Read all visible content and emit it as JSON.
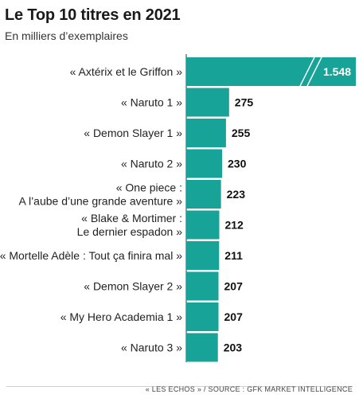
{
  "title": "Le Top 10 titres en 2021",
  "subtitle": "En milliers d’exemplaires",
  "source": "« LES ECHOS » / SOURCE : GFK MARKET INTELLIGENCE",
  "colors": {
    "bar": "#17a398",
    "axis": "#333333"
  },
  "chart_data": {
    "type": "bar",
    "orientation": "horizontal",
    "axis_break_on_first_bar": true,
    "categories": [
      [
        "« Axtérix et le Griffon »"
      ],
      [
        "« Naruto 1 »"
      ],
      [
        "« Demon Slayer 1 »"
      ],
      [
        "« Naruto 2 »"
      ],
      [
        "« One piece :",
        "A l’aube d’une grande aventure »"
      ],
      [
        "« Blake & Mortimer :",
        "Le dernier espadon »"
      ],
      [
        "« Mortelle Adèle : Tout ça finira mal »"
      ],
      [
        "« Demon Slayer 2 »"
      ],
      [
        "« My Hero Academia 1 »"
      ],
      [
        "« Naruto 3 »"
      ]
    ],
    "values": [
      1548,
      275,
      255,
      230,
      223,
      212,
      211,
      207,
      207,
      203
    ],
    "value_labels": [
      "1.548",
      "275",
      "255",
      "230",
      "223",
      "212",
      "211",
      "207",
      "207",
      "203"
    ]
  }
}
